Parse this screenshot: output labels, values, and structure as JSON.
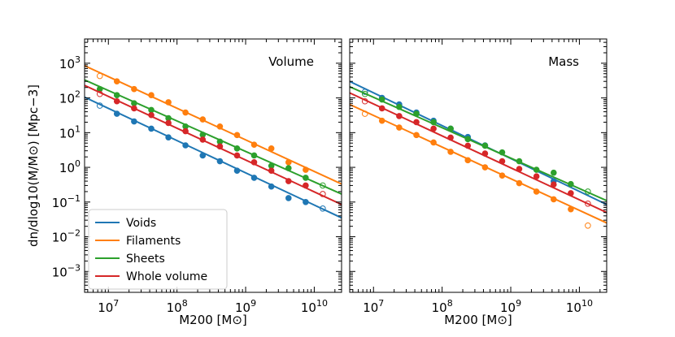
{
  "chart_data": [
    {
      "type": "scatter",
      "title": "",
      "panel_label": "Volume",
      "xlabel": "M200 [M⊙]",
      "ylabel": "dn/dlog10(M/M⊙) [Mpc−3]",
      "x_scale": "log",
      "y_scale": "log",
      "xlim": [
        4500000.0,
        25000000000.0
      ],
      "ylim": [
        0.00025,
        5000.0
      ],
      "x_ticks": [
        {
          "value": 10000000.0,
          "label": "10^7"
        },
        {
          "value": 100000000.0,
          "label": "10^8"
        },
        {
          "value": 1000000000.0,
          "label": "10^9"
        },
        {
          "value": 10000000000.0,
          "label": "10^10"
        }
      ],
      "y_ticks": [
        {
          "value": 0.001,
          "label": "10^−3"
        },
        {
          "value": 0.01,
          "label": "10^−2"
        },
        {
          "value": 0.1,
          "label": "10^−1"
        },
        {
          "value": 1,
          "label": "10^0"
        },
        {
          "value": 10,
          "label": "10^1"
        },
        {
          "value": 100,
          "label": "10^2"
        },
        {
          "value": 1000,
          "label": "10^3"
        }
      ],
      "grid": false,
      "legend_placement": "lower-left",
      "series": [
        {
          "name": "Voids",
          "color": "#1f77b4",
          "fit_line": [
            [
              4500000.0,
              105
            ],
            [
              25000000000.0,
              0.035
            ]
          ],
          "x": [
            7500000.0,
            13300000.0,
            23700000.0,
            42200000.0,
            75000000.0,
            133000000.0,
            237000000.0,
            422000000.0,
            750000000.0,
            1330000000.0,
            2370000000.0,
            4220000000.0,
            7500000000.0,
            13300000000.0
          ],
          "y": [
            60,
            35,
            21,
            13,
            7.3,
            4.3,
            2.2,
            1.5,
            0.8,
            0.5,
            0.28,
            0.13,
            0.1,
            0.065
          ],
          "open": [
            true,
            false,
            false,
            false,
            false,
            false,
            false,
            false,
            false,
            false,
            false,
            false,
            false,
            true
          ]
        },
        {
          "name": "Filaments",
          "color": "#ff7f0e",
          "fit_line": [
            [
              4500000.0,
              850
            ],
            [
              25000000000.0,
              0.33
            ]
          ],
          "x": [
            7500000.0,
            13300000.0,
            23700000.0,
            42200000.0,
            75000000.0,
            133000000.0,
            237000000.0,
            422000000.0,
            750000000.0,
            1330000000.0,
            2370000000.0,
            4220000000.0,
            7500000000.0
          ],
          "y": [
            430,
            300,
            180,
            120,
            75,
            38,
            24,
            15,
            8.5,
            4.5,
            3.5,
            1.4,
            0.85
          ],
          "open": [
            true,
            false,
            false,
            false,
            false,
            false,
            false,
            false,
            false,
            false,
            false,
            false,
            false
          ]
        },
        {
          "name": "Sheets",
          "color": "#2ca02c",
          "fit_line": [
            [
              4500000.0,
              330
            ],
            [
              25000000000.0,
              0.17
            ]
          ],
          "x": [
            7500000.0,
            13300000.0,
            23700000.0,
            42200000.0,
            75000000.0,
            133000000.0,
            237000000.0,
            422000000.0,
            750000000.0,
            1330000000.0,
            2370000000.0,
            4220000000.0,
            7500000000.0,
            13300000000.0
          ],
          "y": [
            180,
            120,
            70,
            45,
            26,
            15,
            8.7,
            5.5,
            3.5,
            2.2,
            1.1,
            0.95,
            0.5,
            0.3
          ],
          "open": [
            false,
            false,
            false,
            false,
            false,
            false,
            false,
            false,
            false,
            false,
            false,
            false,
            false,
            true
          ]
        },
        {
          "name": "Whole volume",
          "color": "#d62728",
          "fit_line": [
            [
              4500000.0,
              230
            ],
            [
              25000000000.0,
              0.085
            ]
          ],
          "x": [
            7500000.0,
            13300000.0,
            23700000.0,
            42200000.0,
            75000000.0,
            133000000.0,
            237000000.0,
            422000000.0,
            750000000.0,
            1330000000.0,
            2370000000.0,
            4220000000.0,
            7500000000.0,
            13300000000.0
          ],
          "y": [
            130,
            80,
            50,
            32,
            19,
            11,
            6.3,
            4.0,
            2.2,
            1.4,
            0.8,
            0.4,
            0.3,
            0.17
          ],
          "open": [
            true,
            false,
            false,
            false,
            false,
            false,
            false,
            false,
            false,
            false,
            false,
            false,
            false,
            true
          ]
        }
      ]
    },
    {
      "type": "scatter",
      "title": "",
      "panel_label": "Mass",
      "xlabel": "M200 [M⊙]",
      "ylabel": "",
      "x_scale": "log",
      "y_scale": "log",
      "xlim": [
        4500000.0,
        25000000000.0
      ],
      "ylim": [
        0.00025,
        5000.0
      ],
      "x_ticks": [
        {
          "value": 10000000.0,
          "label": "10^7"
        },
        {
          "value": 100000000.0,
          "label": "10^8"
        },
        {
          "value": 1000000000.0,
          "label": "10^9"
        },
        {
          "value": 10000000000.0,
          "label": "10^10"
        }
      ],
      "grid": false,
      "series": [
        {
          "name": "Voids",
          "color": "#1f77b4",
          "fit_line": [
            [
              4500000.0,
              300
            ],
            [
              25000000000.0,
              0.085
            ]
          ],
          "x": [
            7500000.0,
            13300000.0,
            23700000.0,
            42200000.0,
            75000000.0,
            133000000.0,
            237000000.0,
            422000000.0,
            4220000000.0
          ],
          "y": [
            150,
            100,
            65,
            38,
            22,
            13,
            7.5,
            4.3,
            0.4
          ],
          "open": [
            true,
            false,
            false,
            false,
            false,
            false,
            false,
            false,
            false
          ]
        },
        {
          "name": "Filaments",
          "color": "#ff7f0e",
          "fit_line": [
            [
              4500000.0,
              65
            ],
            [
              25000000000.0,
              0.025
            ]
          ],
          "x": [
            7500000.0,
            13300000.0,
            23700000.0,
            42200000.0,
            75000000.0,
            133000000.0,
            237000000.0,
            422000000.0,
            750000000.0,
            1330000000.0,
            2370000000.0,
            4220000000.0,
            7500000000.0,
            13300000000.0
          ],
          "y": [
            35,
            22,
            14,
            8.5,
            5.2,
            2.8,
            1.6,
            1.0,
            0.58,
            0.35,
            0.2,
            0.12,
            0.062,
            0.021
          ],
          "open": [
            true,
            false,
            false,
            false,
            false,
            false,
            false,
            false,
            false,
            false,
            false,
            false,
            false,
            true
          ]
        },
        {
          "name": "Sheets",
          "color": "#2ca02c",
          "fit_line": [
            [
              4500000.0,
              210
            ],
            [
              25000000000.0,
              0.11
            ]
          ],
          "x": [
            7500000.0,
            13300000.0,
            23700000.0,
            42200000.0,
            75000000.0,
            133000000.0,
            237000000.0,
            422000000.0,
            750000000.0,
            1330000000.0,
            2370000000.0,
            4220000000.0,
            7500000000.0,
            13300000000.0
          ],
          "y": [
            130,
            90,
            55,
            35,
            20,
            13,
            6.5,
            4.2,
            2.7,
            1.5,
            0.85,
            0.7,
            0.33,
            0.2
          ],
          "open": [
            true,
            false,
            false,
            false,
            false,
            false,
            false,
            false,
            false,
            false,
            false,
            false,
            false,
            true
          ]
        },
        {
          "name": "Whole volume",
          "color": "#d62728",
          "fit_line": [
            [
              4500000.0,
              140
            ],
            [
              25000000000.0,
              0.05
            ]
          ],
          "x": [
            7500000.0,
            13300000.0,
            23700000.0,
            42200000.0,
            75000000.0,
            133000000.0,
            237000000.0,
            422000000.0,
            750000000.0,
            1330000000.0,
            2370000000.0,
            4220000000.0,
            7500000000.0,
            13300000000.0
          ],
          "y": [
            80,
            50,
            30,
            20,
            13,
            7.2,
            4.2,
            2.5,
            1.5,
            0.9,
            0.55,
            0.32,
            0.18,
            0.09
          ],
          "open": [
            true,
            false,
            false,
            false,
            false,
            false,
            false,
            false,
            false,
            false,
            false,
            false,
            false,
            true
          ]
        }
      ]
    }
  ]
}
